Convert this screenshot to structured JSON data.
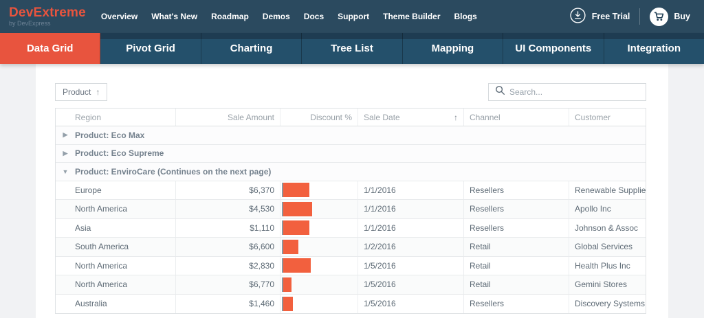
{
  "header": {
    "logo": {
      "title": "DevExtreme",
      "subtitle": "by DevExpress"
    },
    "nav_items": [
      "Overview",
      "What's New",
      "Roadmap",
      "Demos",
      "Docs",
      "Support",
      "Theme Builder",
      "Blogs"
    ],
    "free_trial_label": "Free Trial",
    "buy_label": "Buy"
  },
  "tabs": [
    {
      "label": "Data Grid",
      "active": true
    },
    {
      "label": "Pivot Grid",
      "active": false
    },
    {
      "label": "Charting",
      "active": false
    },
    {
      "label": "Tree List",
      "active": false
    },
    {
      "label": "Mapping",
      "active": false
    },
    {
      "label": "UI Components",
      "active": false
    },
    {
      "label": "Integration",
      "active": false
    }
  ],
  "grid": {
    "group_panel": {
      "field": "Product",
      "sort_icon": "↑"
    },
    "search": {
      "placeholder": "Search..."
    },
    "icons": {
      "collapsed": "▶",
      "expanded": "▼",
      "sort_asc": "↑"
    },
    "columns": [
      {
        "label": "Region",
        "align": "left"
      },
      {
        "label": "Sale Amount",
        "align": "right"
      },
      {
        "label": "Discount %",
        "align": "right"
      },
      {
        "label": "Sale Date",
        "align": "left",
        "sorted": "asc"
      },
      {
        "label": "Channel",
        "align": "left"
      },
      {
        "label": "Customer",
        "align": "left"
      }
    ],
    "body": [
      {
        "type": "group",
        "label": "Product: Eco Max",
        "expanded": false
      },
      {
        "type": "group",
        "label": "Product: Eco Supreme",
        "expanded": false
      },
      {
        "type": "group",
        "label": "Product: EnviroCare (Continues on the next page)",
        "expanded": true
      },
      {
        "type": "data",
        "region": "Europe",
        "sale_amount": "$6,370",
        "discount": 0.2,
        "sale_date": "1/1/2016",
        "channel": "Resellers",
        "customer": "Renewable Supplies"
      },
      {
        "type": "data",
        "region": "North America",
        "sale_amount": "$4,530",
        "discount": 0.22,
        "sale_date": "1/1/2016",
        "channel": "Resellers",
        "customer": "Apollo Inc"
      },
      {
        "type": "data",
        "region": "Asia",
        "sale_amount": "$1,110",
        "discount": 0.2,
        "sale_date": "1/1/2016",
        "channel": "Resellers",
        "customer": "Johnson & Assoc"
      },
      {
        "type": "data",
        "region": "South America",
        "sale_amount": "$6,600",
        "discount": 0.12,
        "sale_date": "1/2/2016",
        "channel": "Retail",
        "customer": "Global Services"
      },
      {
        "type": "data",
        "region": "North America",
        "sale_amount": "$2,830",
        "discount": 0.21,
        "sale_date": "1/5/2016",
        "channel": "Retail",
        "customer": "Health Plus Inc"
      },
      {
        "type": "data",
        "region": "North America",
        "sale_amount": "$6,770",
        "discount": 0.07,
        "sale_date": "1/5/2016",
        "channel": "Retail",
        "customer": "Gemini Stores"
      },
      {
        "type": "data",
        "region": "Australia",
        "sale_amount": "$1,460",
        "discount": 0.08,
        "sale_date": "1/5/2016",
        "channel": "Resellers",
        "customer": "Discovery Systems"
      }
    ]
  },
  "colors": {
    "accent": "#e8543e",
    "topbar": "#2b4a5f",
    "tabbar": "#1e3c52",
    "tab_body": "#24506b",
    "discount_bar": "#f2603e"
  }
}
